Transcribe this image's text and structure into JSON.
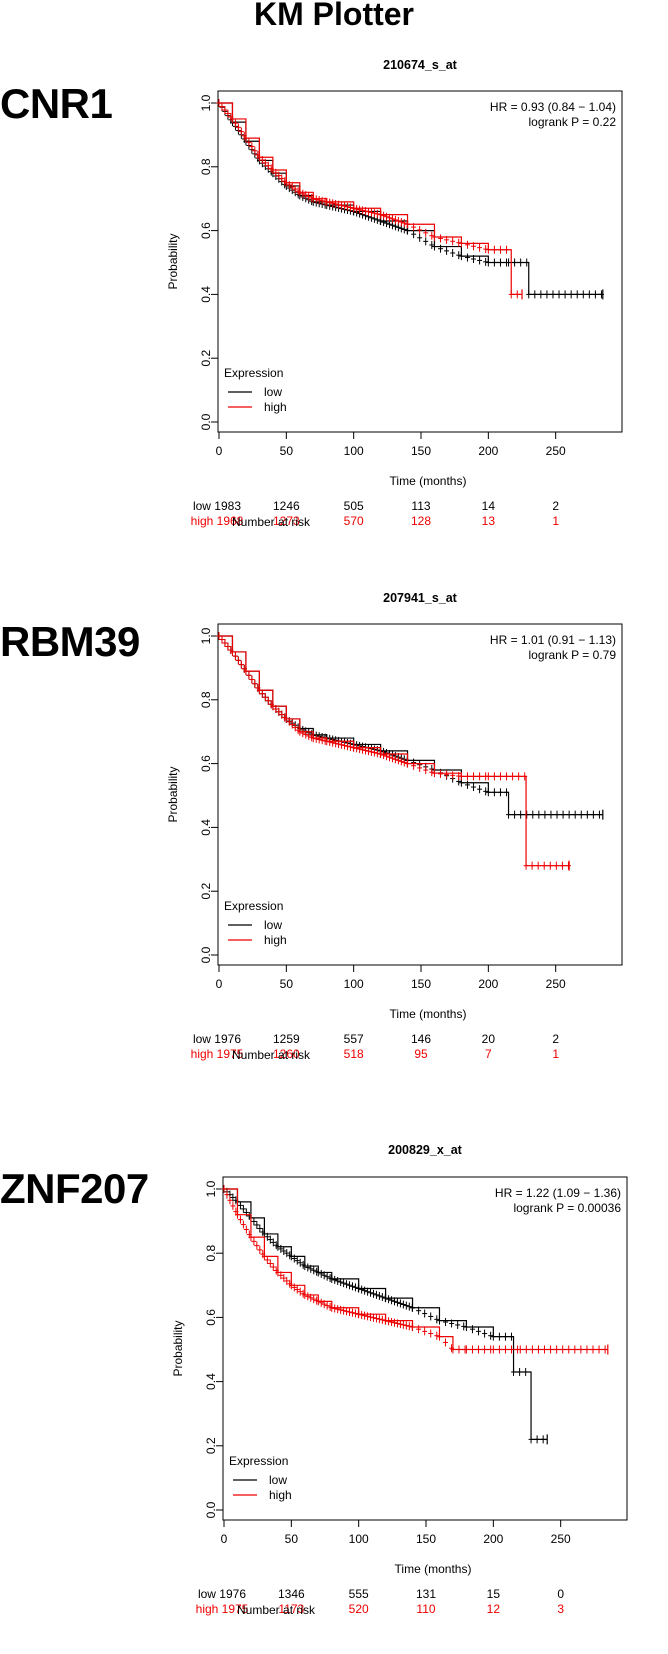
{
  "page_title": "KM Plotter",
  "chart_data": [
    {
      "type": "line",
      "gene": "CNR1",
      "title": "210674_s_at",
      "xlabel": "Time (months)",
      "ylabel": "Probability",
      "xlim": [
        0,
        300
      ],
      "ylim": [
        0,
        1.0
      ],
      "x_ticks": [
        "0",
        "50",
        "100",
        "150",
        "200",
        "250"
      ],
      "y_ticks": [
        "0.0",
        "0.2",
        "0.4",
        "0.6",
        "0.8",
        "1.0"
      ],
      "hr_text": "HR = 0.93 (0.84 − 1.04)",
      "p_text": "logrank P = 0.22",
      "legend_title": "Expression",
      "legend_position": "bottom-left",
      "risk_header": "Number at risk",
      "series": [
        {
          "name": "low",
          "color": "#000000",
          "x": [
            0,
            10,
            20,
            30,
            40,
            50,
            60,
            70,
            80,
            100,
            120,
            140,
            160,
            180,
            200,
            215,
            230,
            230,
            285
          ],
          "y": [
            1.0,
            0.94,
            0.88,
            0.82,
            0.78,
            0.74,
            0.71,
            0.69,
            0.68,
            0.66,
            0.63,
            0.6,
            0.55,
            0.52,
            0.5,
            0.5,
            0.5,
            0.4,
            0.4
          ],
          "risk": [
            "low 1983",
            "1246",
            "505",
            "113",
            "14",
            "2"
          ]
        },
        {
          "name": "high",
          "color": "#ee0000",
          "x": [
            0,
            10,
            20,
            30,
            40,
            50,
            60,
            70,
            80,
            100,
            120,
            140,
            160,
            180,
            200,
            217,
            217,
            225
          ],
          "y": [
            1.0,
            0.95,
            0.89,
            0.83,
            0.79,
            0.75,
            0.72,
            0.7,
            0.69,
            0.67,
            0.65,
            0.62,
            0.58,
            0.56,
            0.54,
            0.54,
            0.4,
            0.4
          ],
          "risk": [
            "high 1968",
            "1273",
            "570",
            "128",
            "13",
            "1"
          ]
        }
      ]
    },
    {
      "type": "line",
      "gene": "RBM39",
      "title": "207941_s_at",
      "xlabel": "Time (months)",
      "ylabel": "Probability",
      "xlim": [
        0,
        300
      ],
      "ylim": [
        0,
        1.0
      ],
      "x_ticks": [
        "0",
        "50",
        "100",
        "150",
        "200",
        "250"
      ],
      "y_ticks": [
        "0.0",
        "0.2",
        "0.4",
        "0.6",
        "0.8",
        "1.0"
      ],
      "hr_text": "HR = 1.01 (0.91 − 1.13)",
      "p_text": "logrank P = 0.79",
      "legend_title": "Expression",
      "legend_position": "bottom-left",
      "risk_header": "Number at risk",
      "series": [
        {
          "name": "low",
          "color": "#000000",
          "x": [
            0,
            10,
            20,
            30,
            40,
            50,
            60,
            70,
            80,
            100,
            120,
            140,
            160,
            180,
            200,
            215,
            215,
            285
          ],
          "y": [
            1.0,
            0.95,
            0.89,
            0.83,
            0.78,
            0.74,
            0.71,
            0.69,
            0.68,
            0.66,
            0.64,
            0.61,
            0.58,
            0.54,
            0.51,
            0.51,
            0.44,
            0.44
          ],
          "risk": [
            "low 1976",
            "1259",
            "557",
            "146",
            "20",
            "2"
          ]
        },
        {
          "name": "high",
          "color": "#ee0000",
          "x": [
            0,
            10,
            20,
            30,
            40,
            50,
            60,
            70,
            80,
            100,
            120,
            140,
            160,
            180,
            200,
            228,
            228,
            260
          ],
          "y": [
            1.0,
            0.95,
            0.89,
            0.83,
            0.78,
            0.74,
            0.7,
            0.68,
            0.67,
            0.65,
            0.63,
            0.6,
            0.57,
            0.56,
            0.56,
            0.56,
            0.28,
            0.28
          ],
          "risk": [
            "high 1975",
            "1260",
            "518",
            "95",
            "7",
            "1"
          ]
        }
      ]
    },
    {
      "type": "line",
      "gene": "ZNF207",
      "title": "200829_x_at",
      "xlabel": "Time (months)",
      "ylabel": "Probability",
      "xlim": [
        0,
        300
      ],
      "ylim": [
        0,
        1.0
      ],
      "x_ticks": [
        "0",
        "50",
        "100",
        "150",
        "200",
        "250"
      ],
      "y_ticks": [
        "0.0",
        "0.2",
        "0.4",
        "0.6",
        "0.8",
        "1.0"
      ],
      "hr_text": "HR = 1.22 (1.09 − 1.36)",
      "p_text": "logrank P = 0.00036",
      "legend_title": "Expression",
      "legend_position": "bottom-left",
      "risk_header": "Number at risk",
      "series": [
        {
          "name": "low",
          "color": "#000000",
          "x": [
            0,
            10,
            20,
            30,
            40,
            50,
            60,
            70,
            80,
            100,
            120,
            140,
            160,
            180,
            200,
            215,
            215,
            228,
            228,
            240
          ],
          "y": [
            1.0,
            0.96,
            0.91,
            0.86,
            0.82,
            0.79,
            0.76,
            0.74,
            0.72,
            0.69,
            0.66,
            0.63,
            0.59,
            0.57,
            0.54,
            0.54,
            0.43,
            0.43,
            0.22,
            0.22
          ],
          "risk": [
            "low 1976",
            "1346",
            "555",
            "131",
            "15",
            "0"
          ]
        },
        {
          "name": "high",
          "color": "#ee0000",
          "x": [
            0,
            10,
            20,
            30,
            40,
            50,
            60,
            70,
            80,
            100,
            120,
            140,
            160,
            170,
            180,
            200,
            220,
            285
          ],
          "y": [
            1.0,
            0.92,
            0.85,
            0.79,
            0.74,
            0.7,
            0.67,
            0.65,
            0.63,
            0.61,
            0.59,
            0.57,
            0.54,
            0.5,
            0.5,
            0.5,
            0.5,
            0.5
          ],
          "risk": [
            "high 1975",
            "1173",
            "520",
            "110",
            "12",
            "3"
          ]
        }
      ]
    }
  ]
}
